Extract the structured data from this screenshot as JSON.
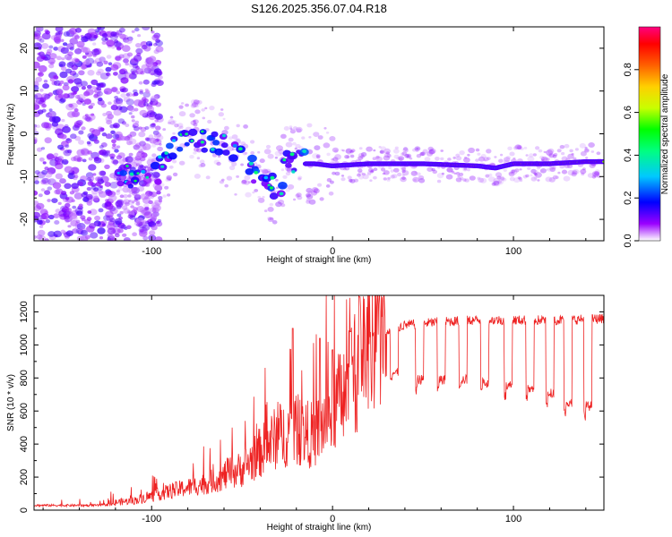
{
  "title": "S126.2025.356.07.04.R18",
  "chart_data": [
    {
      "type": "heatmap",
      "name": "spectrogram",
      "xlabel": "Height of straight line (km)",
      "ylabel": "Frequency (Hz)",
      "xlim": [
        -165,
        150
      ],
      "ylim": [
        -25,
        25
      ],
      "xticks": [
        -100,
        0,
        100
      ],
      "yticks": [
        -20,
        -10,
        0,
        10,
        20
      ],
      "colorbar": {
        "label": "Normalized spectral amplitude",
        "range": [
          0,
          1
        ],
        "ticks": [
          0.0,
          0.2,
          0.4,
          0.6,
          0.8
        ],
        "colormap": [
          "#ffffff",
          "#8a00ff",
          "#0000ff",
          "#00c8ff",
          "#00ff80",
          "#00ff00",
          "#c8ff00",
          "#ffd000",
          "#ff6000",
          "#ff0000",
          "#ff0080"
        ]
      },
      "ridge": {
        "description": "dominant frequency track (Hz) vs height (km)",
        "x": [
          -115,
          -105,
          -95,
          -85,
          -75,
          -65,
          -55,
          -45,
          -38,
          -30,
          -25,
          -20,
          -10,
          0,
          20,
          50,
          80,
          90,
          100,
          120,
          140,
          150
        ],
        "y": [
          -9,
          -10,
          -8,
          -2,
          -1,
          -2,
          -5,
          -8,
          -10,
          -13,
          -7,
          -7,
          -7,
          -7.5,
          -7,
          -7,
          -7.5,
          -8,
          -7,
          -7,
          -6.5,
          -6.5
        ]
      }
    },
    {
      "type": "line",
      "name": "snr",
      "xlabel": "Height of straight line (km)",
      "ylabel": "SNR (10 * v/v)",
      "xlim": [
        -165,
        150
      ],
      "ylim": [
        0,
        1300
      ],
      "xticks": [
        -100,
        0,
        100
      ],
      "yticks": [
        0,
        200,
        400,
        600,
        800,
        1000,
        1200
      ],
      "line_color": "#ee2222",
      "envelope": {
        "x": [
          -165,
          -130,
          -110,
          -90,
          -70,
          -50,
          -40,
          -30,
          -20,
          -10,
          0,
          10,
          20,
          30,
          40,
          60,
          80,
          100,
          120,
          140,
          150
        ],
        "y": [
          40,
          40,
          60,
          120,
          170,
          250,
          350,
          450,
          480,
          450,
          600,
          800,
          950,
          1080,
          1120,
          1140,
          1150,
          1150,
          1150,
          1155,
          1160
        ]
      },
      "dips": {
        "x": [
          32,
          46,
          58,
          70,
          82,
          95,
          107,
          118,
          128,
          139
        ],
        "y": [
          800,
          760,
          760,
          760,
          740,
          720,
          700,
          680,
          620,
          600
        ]
      },
      "peaks": {
        "x": [
          -22,
          -7,
          0,
          10,
          15
        ],
        "y": [
          1100,
          1040,
          970,
          1080,
          1290
        ]
      }
    }
  ]
}
